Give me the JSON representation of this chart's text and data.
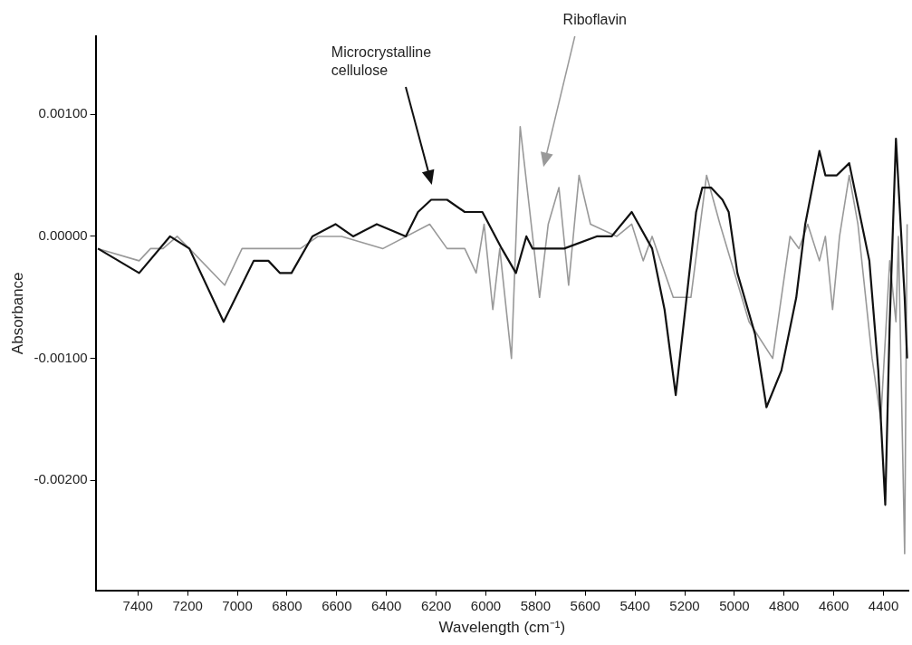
{
  "chart_data": {
    "type": "line",
    "xlabel": "Wavelength (cm⁻¹)",
    "ylabel": "Absorbance",
    "xlim": [
      7570,
      4300
    ],
    "xticks": [
      7400,
      7200,
      7000,
      6800,
      6600,
      6400,
      6200,
      6000,
      5800,
      5600,
      5400,
      5200,
      5000,
      4800,
      4600,
      4400
    ],
    "ylim": [
      -0.0029,
      0.00164
    ],
    "yticks": [
      {
        "value": 0.001,
        "label": "0.00100"
      },
      {
        "value": 0,
        "label": "0.00000"
      },
      {
        "value": -0.001,
        "label": "-0.00100"
      },
      {
        "value": -0.002,
        "label": "-0.00200"
      }
    ],
    "marker": "none",
    "line_style": "solid",
    "series": [
      {
        "color": "#111111",
        "x": [
          7561,
          7395,
          7271,
          7193,
          7055,
          6934,
          6875,
          6829,
          6782,
          6698,
          6605,
          6534,
          6439,
          6322,
          6273,
          6220,
          6156,
          6085,
          6014,
          5936,
          5879,
          5837,
          5812,
          5685,
          5554,
          5494,
          5413,
          5331,
          5281,
          5236,
          5154,
          5129,
          5094,
          5048,
          5023,
          4988,
          4917,
          4871,
          4811,
          4751,
          4715,
          4658,
          4634,
          4588,
          4538,
          4457,
          4421,
          4393,
          4375,
          4350,
          4315,
          4305
        ],
        "values": [
          -0.0001,
          -0.0003,
          0,
          -0.0001,
          -0.0007,
          -0.0002,
          -0.0002,
          -0.0003,
          -0.0003,
          0,
          0.0001,
          0,
          0.0001,
          0,
          0.0002,
          0.0003,
          0.0003,
          0.0002,
          0.0002,
          -0.0001,
          -0.0003,
          0,
          -0.0001,
          -0.0001,
          0,
          0,
          0.0002,
          -0.0001,
          -0.0006,
          -0.0013,
          0.0002,
          0.0004,
          0.0004,
          0.0003,
          0.0002,
          -0.0003,
          -0.0008,
          -0.0014,
          -0.0011,
          -0.0005,
          0.0001,
          0.0007,
          0.0005,
          0.0005,
          0.0006,
          -0.0002,
          -0.0011,
          -0.0022,
          -0.0007,
          0.0008,
          -0.0005,
          -0.001
        ]
      },
      {
        "color": "#999999",
        "x": [
          7561,
          7395,
          7349,
          7299,
          7242,
          7193,
          7051,
          6981,
          6852,
          6746,
          6675,
          6580,
          6414,
          6226,
          6156,
          6085,
          6039,
          6007,
          5972,
          5944,
          5897,
          5862,
          5784,
          5749,
          5706,
          5667,
          5625,
          5579,
          5473,
          5413,
          5367,
          5331,
          5246,
          5175,
          5112,
          5058,
          4941,
          4846,
          4776,
          4740,
          4705,
          4658,
          4634,
          4605,
          4577,
          4538,
          4503,
          4446,
          4411,
          4375,
          4350,
          4340,
          4315,
          4305
        ],
        "values": [
          -0.0001,
          -0.0002,
          -0.0001,
          -0.0001,
          0,
          -0.0001,
          -0.0004,
          -0.0001,
          -0.0001,
          -0.0001,
          0,
          0,
          -0.0001,
          0.0001,
          -0.0001,
          -0.0001,
          -0.0003,
          0.0001,
          -0.0006,
          -0.0001,
          -0.001,
          0.0009,
          -0.0005,
          0.0001,
          0.0004,
          -0.0004,
          0.0005,
          0.0001,
          0,
          0.0001,
          -0.0002,
          0,
          -0.0005,
          -0.0005,
          0.0005,
          0.0001,
          -0.0007,
          -0.001,
          0,
          -0.0001,
          0.0001,
          -0.0002,
          0,
          -0.0006,
          0,
          0.0005,
          0.0001,
          -0.001,
          -0.0015,
          -0.0002,
          -0.0007,
          0,
          -0.0026,
          0.0001
        ]
      }
    ],
    "annotations": [
      "Microcrystalline cellulose",
      "Riboflavin"
    ]
  }
}
